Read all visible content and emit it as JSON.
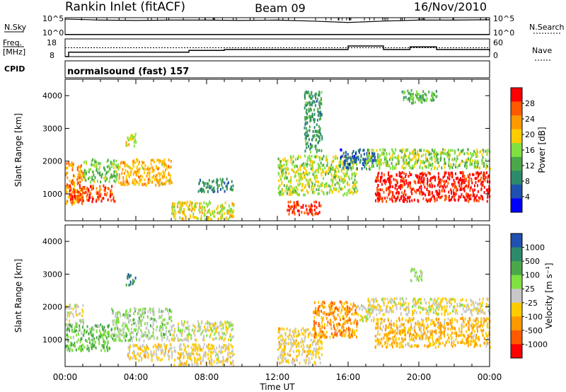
{
  "header": {
    "station": "Rankin Inlet (fitACF)",
    "beam": "Beam 09",
    "date": "16/Nov/2010"
  },
  "strip_labels": {
    "nsky": "N.Sky",
    "nsearch": "N.Search",
    "freq_line1": "Freq.",
    "freq_line2": "[MHz]",
    "nave": "Nave",
    "cpid": "CPID",
    "cpid_value": "normalsound (fast) 157"
  },
  "strip_ticks": {
    "nsky_top": "10^5",
    "nsky_bottom": "10^0",
    "nsearch_top": "10^5",
    "nsearch_bottom": "10^0",
    "freq_top": "18",
    "freq_bottom": "8",
    "nave_top": "60",
    "nave_bottom": "0"
  },
  "panels": {
    "power": {
      "ylabel": "Slant Range [km]",
      "cbar_label": "Power [dB]"
    },
    "velocity": {
      "ylabel": "Slant Range [km]",
      "cbar_label": "Velocity [m s⁻¹]"
    }
  },
  "xlabel": "Time UT",
  "colors": {
    "red": "#ff0000",
    "orange_red": "#ff5a00",
    "orange": "#ff9900",
    "yellow": "#ffcc00",
    "light_green": "#80e040",
    "green": "#4aa84a",
    "teal": "#2d8a6a",
    "blue": "#2050b0",
    "deep_blue": "#0000ff",
    "grey": "#c8c8c8"
  },
  "chart_data": [
    {
      "type": "heatmap",
      "title": "",
      "xlabel": "Time UT",
      "ylabel": "Slant Range [km]",
      "x_ticks": [
        "00:00",
        "04:00",
        "08:00",
        "12:00",
        "16:00",
        "20:00",
        "00:00"
      ],
      "y_ticks": [
        "1000",
        "2000",
        "3000",
        "4000"
      ],
      "xlim_hours": [
        0,
        24
      ],
      "ylim_km": [
        180,
        4500
      ],
      "colorbar": {
        "label": "Power [dB]",
        "ticks": [
          "28",
          "24",
          "20",
          "16",
          "12",
          "8",
          "4"
        ],
        "range": [
          0,
          30
        ],
        "colors_top_to_bottom": [
          "#ff0000",
          "#ff5a00",
          "#ff9900",
          "#ffcc00",
          "#80e040",
          "#4aa84a",
          "#2d8a6a",
          "#2050b0",
          "#0000ff"
        ]
      },
      "scatter_regions": [
        {
          "t0": 0.0,
          "t1": 1.0,
          "r0": 700,
          "r1": 2000,
          "value": 22
        },
        {
          "t0": 0.2,
          "t1": 2.8,
          "r0": 800,
          "r1": 1300,
          "value": 26
        },
        {
          "t0": 1.0,
          "t1": 3.0,
          "r0": 1400,
          "r1": 2100,
          "value": 14
        },
        {
          "t0": 3.0,
          "t1": 6.0,
          "r0": 1300,
          "r1": 2100,
          "value": 20
        },
        {
          "t0": 3.4,
          "t1": 4.0,
          "r0": 2500,
          "r1": 2900,
          "value": 17
        },
        {
          "t0": 6.0,
          "t1": 9.5,
          "r0": 250,
          "r1": 800,
          "value": 18
        },
        {
          "t0": 7.5,
          "t1": 9.5,
          "r0": 1100,
          "r1": 1500,
          "value": 9
        },
        {
          "t0": 12.5,
          "t1": 14.5,
          "r0": 400,
          "r1": 800,
          "value": 27
        },
        {
          "t0": 12.0,
          "t1": 16.5,
          "r0": 1000,
          "r1": 2200,
          "value": 16
        },
        {
          "t0": 13.5,
          "t1": 14.5,
          "r0": 2300,
          "r1": 4200,
          "value": 10
        },
        {
          "t0": 15.5,
          "t1": 17.5,
          "r0": 1800,
          "r1": 2400,
          "value": 6
        },
        {
          "t0": 17.5,
          "t1": 24.0,
          "r0": 800,
          "r1": 1700,
          "value": 28
        },
        {
          "t0": 17.0,
          "t1": 24.0,
          "r0": 1800,
          "r1": 2400,
          "value": 15
        },
        {
          "t0": 19.0,
          "t1": 21.0,
          "r0": 3800,
          "r1": 4200,
          "value": 12
        }
      ]
    },
    {
      "type": "heatmap",
      "title": "",
      "xlabel": "Time UT",
      "ylabel": "Slant Range [km]",
      "x_ticks": [
        "00:00",
        "04:00",
        "08:00",
        "12:00",
        "16:00",
        "20:00",
        "00:00"
      ],
      "y_ticks": [
        "1000",
        "2000",
        "3000",
        "4000"
      ],
      "xlim_hours": [
        0,
        24
      ],
      "ylim_km": [
        180,
        4500
      ],
      "colorbar": {
        "label": "Velocity [m s⁻¹]",
        "ticks": [
          "1000",
          "500",
          "100",
          "25",
          "-25",
          "-100",
          "-500",
          "-1000"
        ],
        "range": [
          -1000,
          1000
        ],
        "colors_top_to_bottom": [
          "#2050b0",
          "#2d8a6a",
          "#4aa84a",
          "#80e040",
          "#c8c8c8",
          "#ffcc00",
          "#ff9900",
          "#ff5a00",
          "#ff0000"
        ]
      },
      "scatter_regions": [
        {
          "t0": 0.0,
          "t1": 1.0,
          "r0": 1500,
          "r1": 2100,
          "value": 0
        },
        {
          "t0": 0.0,
          "t1": 2.6,
          "r0": 700,
          "r1": 1500,
          "value": 300
        },
        {
          "t0": 2.6,
          "t1": 6.0,
          "r0": 1000,
          "r1": 2000,
          "value": 150
        },
        {
          "t0": 3.4,
          "t1": 4.0,
          "r0": 2700,
          "r1": 3100,
          "value": 700
        },
        {
          "t0": 3.5,
          "t1": 6.0,
          "r0": 400,
          "r1": 900,
          "value": -150
        },
        {
          "t0": 6.0,
          "t1": 9.5,
          "r0": 250,
          "r1": 900,
          "value": -120
        },
        {
          "t0": 6.0,
          "t1": 9.5,
          "r0": 1000,
          "r1": 1600,
          "value": 0
        },
        {
          "t0": 12.0,
          "t1": 14.5,
          "r0": 300,
          "r1": 1400,
          "value": -150
        },
        {
          "t0": 14.0,
          "t1": 16.5,
          "r0": 1100,
          "r1": 2200,
          "value": -450
        },
        {
          "t0": 16.5,
          "t1": 17.5,
          "r0": 1600,
          "r1": 2100,
          "value": 0
        },
        {
          "t0": 17.5,
          "t1": 24.0,
          "r0": 800,
          "r1": 1700,
          "value": -300
        },
        {
          "t0": 17.0,
          "t1": 24.0,
          "r0": 1800,
          "r1": 2300,
          "value": -90
        },
        {
          "t0": 19.5,
          "t1": 20.2,
          "r0": 2800,
          "r1": 3200,
          "value": 120
        }
      ]
    },
    {
      "type": "line",
      "title": "Freq. [MHz] / Nave",
      "x_hours": [
        0,
        0.2,
        3.0,
        6.0,
        6.3,
        7.0,
        9.0,
        11.0,
        12.0,
        13.0,
        14.0,
        15.0,
        16.0,
        17.0,
        18.0,
        19.0,
        19.5,
        20.0,
        21.0,
        22.0,
        23.0,
        24.0
      ],
      "freq_mhz": [
        8,
        10.5,
        10.5,
        10.5,
        10.5,
        11.5,
        12,
        12,
        12,
        12,
        12,
        12,
        14,
        14,
        12,
        12,
        13.5,
        13.5,
        12,
        12,
        12,
        11
      ],
      "ylim_freq": [
        8,
        18
      ],
      "nave_dotted_level": 30,
      "ylim_nave": [
        0,
        60
      ]
    },
    {
      "type": "line",
      "title": "N.Sky / N.Search",
      "x_hours": [
        0,
        2,
        4,
        6,
        8,
        10,
        12,
        14,
        16,
        18,
        20,
        22,
        24
      ],
      "nsky_log10": [
        4.6,
        4.3,
        4.2,
        4.3,
        4.3,
        4.2,
        4.3,
        4.0,
        3.6,
        4.0,
        4.3,
        4.3,
        4.4
      ],
      "nsearch_log10": [
        0.1,
        0.1,
        0.1,
        0.1,
        0.1,
        0.1,
        0.1,
        0.1,
        0.1,
        0.1,
        0.1,
        0.1,
        0.1
      ],
      "ylim_log10": [
        0,
        5
      ]
    }
  ]
}
